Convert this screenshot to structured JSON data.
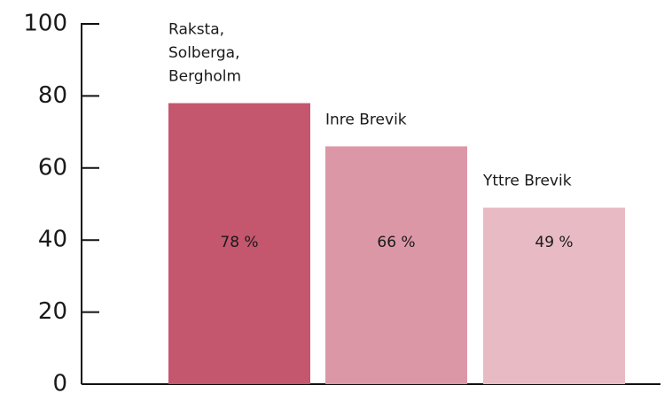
{
  "chart_data": {
    "type": "bar",
    "categories": [
      "Raksta,\nSolberga,\nBergholm",
      "Inre Brevik",
      "Yttre Brevik"
    ],
    "values": [
      78,
      66,
      49
    ],
    "value_labels": [
      "78 %",
      "66 %",
      "49 %"
    ],
    "colors": [
      "#c4566e",
      "#dc97a7",
      "#e8bac4"
    ],
    "ylim": [
      0,
      100
    ],
    "yticks": [
      0,
      20,
      40,
      60,
      80,
      100
    ]
  }
}
